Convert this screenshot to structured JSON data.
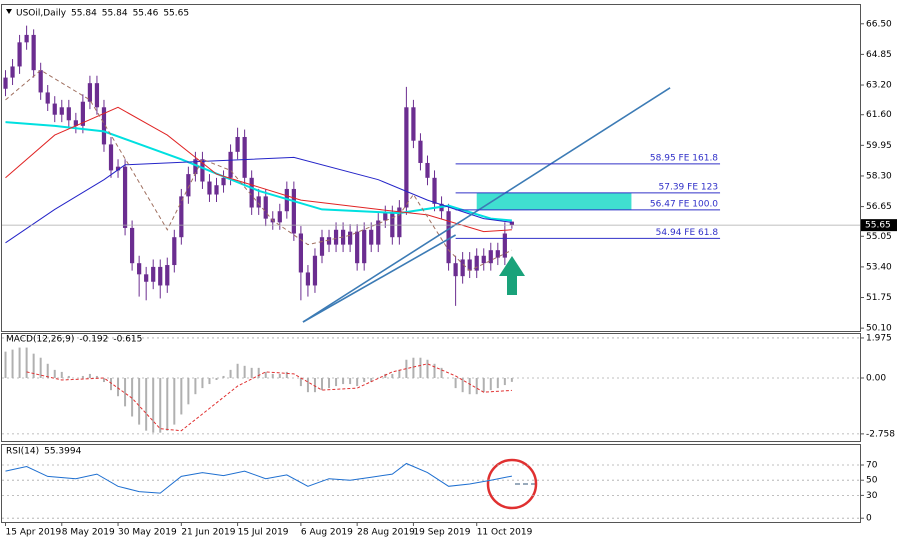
{
  "chart_data": [
    {
      "type": "candlestick",
      "title": "USOil,Daily",
      "header_values": [
        55.84,
        55.84,
        55.46,
        55.65
      ],
      "color": "#6b2d90",
      "open": [
        63.0,
        63.6,
        64.2,
        65.5,
        65.9,
        64.0,
        62.8,
        62.2,
        61.6,
        62.0,
        61.3,
        61.0,
        62.3,
        63.3,
        62.0,
        60.0,
        58.6,
        58.8,
        55.5,
        53.6,
        53.0,
        52.6,
        53.4,
        52.4,
        53.5,
        55.0,
        57.2,
        58.4,
        59.2,
        58.0,
        57.3,
        57.8,
        58.2,
        59.6,
        60.4,
        58.2,
        56.6,
        57.2,
        56.0,
        55.8,
        56.4,
        57.6,
        55.2,
        53.1,
        52.4,
        54.0,
        55.0,
        54.6,
        55.4,
        54.6,
        55.3,
        53.6,
        55.4,
        54.6,
        55.9,
        56.3,
        55.0,
        56.6,
        62.0,
        60.2,
        59.0,
        58.2,
        56.8,
        56.4,
        53.6,
        52.9,
        53.8,
        53.2,
        54.0,
        53.6,
        54.3,
        53.9,
        55.84
      ],
      "high": [
        64.0,
        64.6,
        65.9,
        66.4,
        66.2,
        64.4,
        63.2,
        62.6,
        62.4,
        62.4,
        61.7,
        62.7,
        63.7,
        63.7,
        62.4,
        60.4,
        59.2,
        59.2,
        55.9,
        54.0,
        53.4,
        53.8,
        53.8,
        53.9,
        55.4,
        57.6,
        58.8,
        59.6,
        59.6,
        58.4,
        58.2,
        58.6,
        60.0,
        60.9,
        60.8,
        58.6,
        57.6,
        57.6,
        56.4,
        56.8,
        58.0,
        58.0,
        55.6,
        53.5,
        54.4,
        55.4,
        55.4,
        55.8,
        55.8,
        55.7,
        55.7,
        55.8,
        55.8,
        56.3,
        56.7,
        56.7,
        57.0,
        63.1,
        62.4,
        60.6,
        59.4,
        58.6,
        57.2,
        56.8,
        54.0,
        54.2,
        54.2,
        54.4,
        54.4,
        54.7,
        54.7,
        55.8,
        55.84
      ],
      "low": [
        62.6,
        63.2,
        63.8,
        65.1,
        63.6,
        62.4,
        61.8,
        61.2,
        61.2,
        60.9,
        60.6,
        60.6,
        61.9,
        61.6,
        59.6,
        58.2,
        58.2,
        55.1,
        53.2,
        51.8,
        51.6,
        52.2,
        51.7,
        52.0,
        53.1,
        54.6,
        56.8,
        58.0,
        57.6,
        56.9,
        56.9,
        57.4,
        57.8,
        59.2,
        57.8,
        56.2,
        56.2,
        55.6,
        55.4,
        55.4,
        56.0,
        54.8,
        51.6,
        51.8,
        52.0,
        53.6,
        54.2,
        54.2,
        54.2,
        54.2,
        53.2,
        53.2,
        54.2,
        54.2,
        55.5,
        54.6,
        54.6,
        56.2,
        59.8,
        58.6,
        57.8,
        56.4,
        56.0,
        53.2,
        51.3,
        52.5,
        52.8,
        52.8,
        53.2,
        53.2,
        53.5,
        53.5,
        55.46
      ],
      "close": [
        63.6,
        64.2,
        65.5,
        65.9,
        64.0,
        62.8,
        62.2,
        61.6,
        62.0,
        61.3,
        61.0,
        62.3,
        63.3,
        62.0,
        60.0,
        58.6,
        58.8,
        55.5,
        53.6,
        53.0,
        52.6,
        53.4,
        52.4,
        53.5,
        55.0,
        57.2,
        58.4,
        59.2,
        58.0,
        57.3,
        57.8,
        58.2,
        59.6,
        60.4,
        58.2,
        56.6,
        57.2,
        56.0,
        55.8,
        56.4,
        57.6,
        55.2,
        53.1,
        52.4,
        54.0,
        55.0,
        54.6,
        55.4,
        54.6,
        55.3,
        53.6,
        55.4,
        54.6,
        55.9,
        56.3,
        55.0,
        56.6,
        62.0,
        60.2,
        59.0,
        58.2,
        56.8,
        56.4,
        53.6,
        52.9,
        53.8,
        53.2,
        54.0,
        53.6,
        54.3,
        53.9,
        55.2,
        55.65
      ],
      "xlim": [
        -0.5,
        121.5
      ],
      "xticks": [
        {
          "value": 0,
          "label": "15 Apr 2019"
        },
        {
          "value": 8,
          "label": "8 May 2019"
        },
        {
          "value": 16,
          "label": "30 May 2019"
        },
        {
          "value": 25,
          "label": "21 Jun 2019"
        },
        {
          "value": 33,
          "label": "15 Jul 2019"
        },
        {
          "value": 42,
          "label": "6 Aug 2019"
        },
        {
          "value": 50,
          "label": "28 Aug 2019"
        },
        {
          "value": 58,
          "label": "19 Sep 2019"
        },
        {
          "value": 67,
          "label": "11 Oct 2019"
        }
      ],
      "ylim": [
        50.0,
        67.35
      ],
      "yticks": [
        {
          "value": 66.5,
          "label": "66.50"
        },
        64.85,
        {
          "value": 63.2,
          "label": "63.20"
        },
        {
          "value": 61.6,
          "label": "61.60"
        },
        59.95,
        {
          "value": 58.3,
          "label": "58.30"
        },
        56.65,
        55.05,
        {
          "value": 53.4,
          "label": "53.40"
        },
        51.75,
        {
          "value": 50.1,
          "label": "50.10"
        }
      ],
      "grid": false,
      "last_price": 55.65,
      "series": [
        {
          "color": "#00e0e0",
          "width": 2,
          "dash": false,
          "x": [
            0,
            7,
            14,
            25,
            36,
            45,
            56,
            63,
            69,
            72
          ],
          "values": [
            61.2,
            61.0,
            60.7,
            59.2,
            57.5,
            56.5,
            56.3,
            56.7,
            56.0,
            55.9
          ]
        },
        {
          "color": "#2424c8",
          "width": 1,
          "dash": false,
          "x": [
            0,
            7,
            14,
            17,
            26,
            41,
            53,
            60,
            68,
            72
          ],
          "values": [
            54.7,
            56.5,
            58.1,
            58.9,
            59.05,
            59.3,
            58.1,
            57.0,
            56.0,
            55.8
          ]
        },
        {
          "color": "#e02424",
          "width": 1,
          "dash": false,
          "x": [
            0,
            7,
            16,
            23,
            30,
            42,
            53,
            60,
            68,
            72
          ],
          "values": [
            58.2,
            60.5,
            62.0,
            60.5,
            58.4,
            57.0,
            56.5,
            56.2,
            55.3,
            55.4
          ]
        },
        {
          "color": "#a07060",
          "width": 1,
          "dash": true,
          "x": [
            0,
            5,
            12,
            18,
            23,
            28,
            32,
            38,
            43,
            49,
            56,
            58,
            63,
            66,
            72
          ],
          "values": [
            62.4,
            64.0,
            62.4,
            58.6,
            55.4,
            59.2,
            58.6,
            55.9,
            54.6,
            55.1,
            56.2,
            57.3,
            54.3,
            53.2,
            54.3
          ]
        }
      ],
      "trendlines": [
        {
          "color": "#3c7bb5",
          "x": [
            42.3,
            94.5
          ],
          "values": [
            50.43,
            63.05
          ]
        },
        {
          "color": "#3c7bb5",
          "x": [
            42.3,
            64
          ],
          "values": [
            50.43,
            55.12
          ]
        }
      ],
      "fibo_color": "#3030c8",
      "fibo_x": [
        64,
        101.6
      ],
      "fibo_levels": [
        {
          "value": 58.95,
          "label": "58.95  FE 161.8"
        },
        {
          "value": 57.39,
          "label": "57.39  FE 123"
        },
        {
          "value": 56.47,
          "label": "56.47  FE 100.0"
        },
        {
          "value": 54.94,
          "label": "54.94  FE 61.8"
        }
      ],
      "zone": {
        "color": "#40e0d0",
        "x": [
          67,
          89
        ],
        "values": [
          56.47,
          57.39
        ]
      }
    },
    {
      "type": "macd",
      "title": "MACD(12,26,9)",
      "header_values": [
        -0.192,
        -0.615
      ],
      "color": "#b0b0b0",
      "values": [
        1.3,
        1.4,
        1.5,
        1.5,
        1.2,
        1.0,
        0.7,
        0.4,
        0.3,
        0.1,
        0,
        0.1,
        0.2,
        0.1,
        -0.2,
        -0.6,
        -0.9,
        -1.4,
        -1.9,
        -2.3,
        -2.6,
        -2.7,
        -2.7,
        -2.6,
        -2.3,
        -1.8,
        -1.3,
        -0.8,
        -0.5,
        -0.3,
        -0.1,
        0.1,
        0.4,
        0.7,
        0.6,
        0.5,
        0.5,
        0.3,
        0.2,
        0.2,
        0.3,
        0.0,
        -0.4,
        -0.7,
        -0.7,
        -0.6,
        -0.5,
        -0.4,
        -0.3,
        -0.3,
        -0.4,
        -0.2,
        -0.2,
        0,
        0.2,
        0.2,
        0.4,
        0.9,
        1.0,
        1.0,
        0.9,
        0.7,
        0.5,
        0,
        -0.5,
        -0.7,
        -0.8,
        -0.8,
        -0.7,
        -0.6,
        -0.5,
        -0.35,
        -0.192
      ],
      "signal": {
        "color": "#e03030",
        "x": [
          3,
          8,
          14,
          18,
          22,
          25,
          29,
          33,
          37,
          41,
          45,
          50,
          55,
          60,
          64,
          68,
          72
        ],
        "values": [
          0.3,
          -0.1,
          0,
          -1.0,
          -2.5,
          -2.6,
          -1.5,
          -0.4,
          0.3,
          0.2,
          -0.6,
          -0.5,
          0.3,
          0.7,
          0.1,
          -0.7,
          -0.615
        ]
      },
      "ylim": [
        -3.06,
        2.17
      ],
      "yticks": [
        1.975,
        {
          "value": 0,
          "label": "0.00"
        },
        -2.758
      ],
      "grid": true
    },
    {
      "type": "line",
      "title": "RSI(14)",
      "header_values": [
        55.3994
      ],
      "color": "#1e6fd0",
      "x": [
        0,
        3,
        6,
        10,
        13,
        16,
        19,
        22,
        25,
        28,
        31,
        34,
        37,
        40,
        43,
        46,
        49,
        52,
        55,
        57,
        60,
        63,
        66,
        69,
        72
      ],
      "values": [
        62,
        68,
        55,
        52,
        58,
        42,
        35,
        33,
        55,
        60,
        56,
        62,
        52,
        57,
        42,
        52,
        50,
        54,
        58,
        72,
        60,
        42,
        45,
        50,
        55.3994
      ],
      "ylim": [
        -5,
        95
      ],
      "yticks": [
        70,
        50,
        30,
        0
      ],
      "grid": true
    }
  ]
}
